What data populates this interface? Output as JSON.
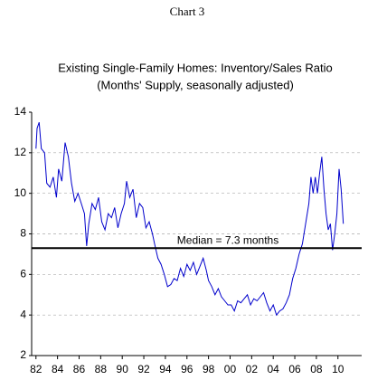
{
  "chart_data": {
    "type": "line",
    "heading": "Chart 3",
    "title": "Existing Single-Family Homes: Inventory/Sales Ratio",
    "subtitle": "(Months' Supply, seasonally adjusted)",
    "x": [
      1982.0,
      1982.1,
      1982.3,
      1982.5,
      1982.8,
      1983.0,
      1983.3,
      1983.6,
      1983.9,
      1984.1,
      1984.4,
      1984.7,
      1985.0,
      1985.3,
      1985.6,
      1985.9,
      1986.2,
      1986.5,
      1986.7,
      1986.9,
      1987.2,
      1987.5,
      1987.8,
      1988.1,
      1988.4,
      1988.7,
      1989.0,
      1989.3,
      1989.6,
      1989.9,
      1990.2,
      1990.4,
      1990.7,
      1991.0,
      1991.3,
      1991.6,
      1991.9,
      1992.2,
      1992.5,
      1992.8,
      1993.0,
      1993.3,
      1993.6,
      1993.9,
      1994.2,
      1994.5,
      1994.8,
      1995.1,
      1995.4,
      1995.7,
      1996.0,
      1996.3,
      1996.6,
      1996.9,
      1997.2,
      1997.5,
      1997.8,
      1998.0,
      1998.3,
      1998.6,
      1998.9,
      1999.2,
      1999.5,
      1999.8,
      2000.1,
      2000.4,
      2000.7,
      2001.0,
      2001.3,
      2001.6,
      2001.9,
      2002.2,
      2002.5,
      2002.8,
      2003.1,
      2003.4,
      2003.7,
      2004.0,
      2004.3,
      2004.6,
      2004.9,
      2005.2,
      2005.5,
      2005.8,
      2006.1,
      2006.4,
      2006.7,
      2007.0,
      2007.3,
      2007.5,
      2007.7,
      2007.9,
      2008.1,
      2008.3,
      2008.5,
      2008.7,
      2008.9,
      2009.1,
      2009.3,
      2009.5,
      2009.7,
      2009.9,
      2010.1,
      2010.3,
      2010.5
    ],
    "series": [
      {
        "name": "Inventory/Sales Ratio",
        "color": "#0000cc",
        "values": [
          12.2,
          13.2,
          13.5,
          12.2,
          12.0,
          10.5,
          10.3,
          10.8,
          9.8,
          11.2,
          10.6,
          12.5,
          11.8,
          10.5,
          9.6,
          10.0,
          9.5,
          9.0,
          7.4,
          8.5,
          9.5,
          9.2,
          9.8,
          8.6,
          8.2,
          9.0,
          8.8,
          9.3,
          8.3,
          9.0,
          9.5,
          10.6,
          9.8,
          10.2,
          8.8,
          9.5,
          9.3,
          8.3,
          8.6,
          8.0,
          7.5,
          6.8,
          6.5,
          6.0,
          5.4,
          5.5,
          5.8,
          5.7,
          6.3,
          5.9,
          6.5,
          6.2,
          6.6,
          6.0,
          6.4,
          6.8,
          6.2,
          5.7,
          5.4,
          5.0,
          5.3,
          4.9,
          4.7,
          4.5,
          4.5,
          4.2,
          4.7,
          4.6,
          4.8,
          5.0,
          4.5,
          4.8,
          4.7,
          4.9,
          5.1,
          4.6,
          4.2,
          4.5,
          4.0,
          4.2,
          4.3,
          4.6,
          5.0,
          5.8,
          6.3,
          7.0,
          7.5,
          8.5,
          9.5,
          10.8,
          10.0,
          10.8,
          10.0,
          11.0,
          11.8,
          10.2,
          9.0,
          8.2,
          8.5,
          7.2,
          8.0,
          9.0,
          11.2,
          10.2,
          8.5
        ]
      }
    ],
    "median": 7.3,
    "median_label": "Median = 7.3 months",
    "xlim": [
      1981.6,
      2012.2
    ],
    "xticks": [
      {
        "value": 1982,
        "label": "82"
      },
      {
        "value": 1984,
        "label": "84"
      },
      {
        "value": 1986,
        "label": "86"
      },
      {
        "value": 1988,
        "label": "88"
      },
      {
        "value": 1990,
        "label": "90"
      },
      {
        "value": 1992,
        "label": "92"
      },
      {
        "value": 1994,
        "label": "94"
      },
      {
        "value": 1996,
        "label": "96"
      },
      {
        "value": 1998,
        "label": "98"
      },
      {
        "value": 2000,
        "label": "00"
      },
      {
        "value": 2002,
        "label": "02"
      },
      {
        "value": 2004,
        "label": "04"
      },
      {
        "value": 2006,
        "label": "06"
      },
      {
        "value": 2008,
        "label": "08"
      },
      {
        "value": 2010,
        "label": "10"
      }
    ],
    "ylim": [
      2,
      14
    ],
    "yticks": [
      2,
      4,
      6,
      8,
      10,
      12,
      14
    ],
    "grid": true
  }
}
